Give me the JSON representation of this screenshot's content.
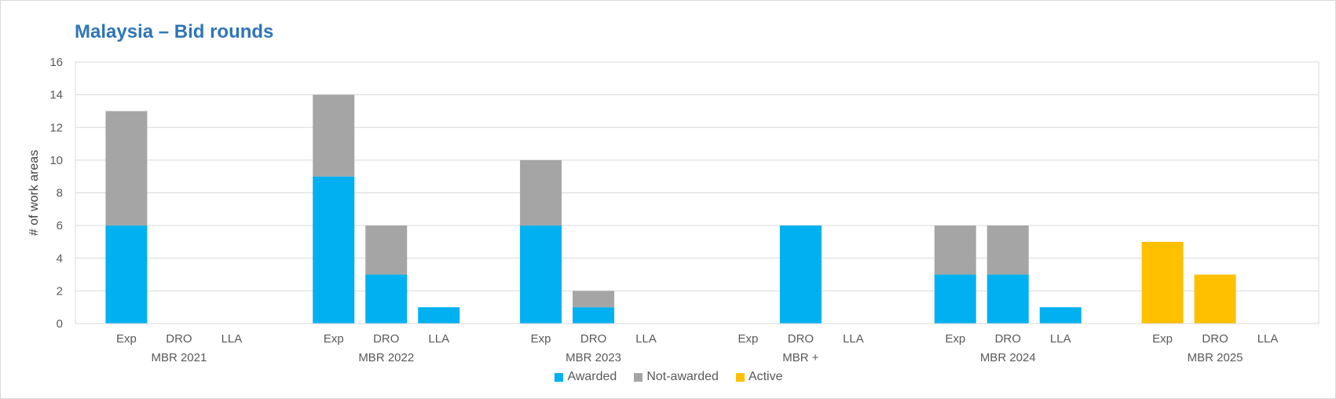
{
  "chart_data": {
    "type": "bar",
    "stacked": true,
    "title": "Malaysia – Bid rounds",
    "ylabel": "# of work areas",
    "ylim": [
      0,
      16
    ],
    "yticks": [
      0,
      2,
      4,
      6,
      8,
      10,
      12,
      14,
      16
    ],
    "grid": true,
    "legend_position": "bottom",
    "groups": [
      {
        "label": "MBR 2021",
        "categories": [
          "Exp",
          "DRO",
          "LLA"
        ]
      },
      {
        "label": "MBR 2022",
        "categories": [
          "Exp",
          "DRO",
          "LLA"
        ]
      },
      {
        "label": "MBR 2023",
        "categories": [
          "Exp",
          "DRO",
          "LLA"
        ]
      },
      {
        "label": "MBR +",
        "categories": [
          "Exp",
          "DRO",
          "LLA"
        ]
      },
      {
        "label": "MBR 2024",
        "categories": [
          "Exp",
          "DRO",
          "LLA"
        ]
      },
      {
        "label": "MBR 2025",
        "categories": [
          "Exp",
          "DRO",
          "LLA"
        ]
      }
    ],
    "series": [
      {
        "name": "Awarded",
        "color": "#00b0f0",
        "values": [
          [
            6,
            0,
            0
          ],
          [
            9,
            3,
            1
          ],
          [
            6,
            1,
            0
          ],
          [
            0,
            6,
            0
          ],
          [
            3,
            3,
            1
          ],
          [
            0,
            0,
            0
          ]
        ]
      },
      {
        "name": "Not-awarded",
        "color": "#a5a5a5",
        "values": [
          [
            7,
            0,
            0
          ],
          [
            5,
            3,
            0
          ],
          [
            4,
            1,
            0
          ],
          [
            0,
            0,
            0
          ],
          [
            3,
            3,
            0
          ],
          [
            0,
            0,
            0
          ]
        ]
      },
      {
        "name": "Active",
        "color": "#ffc000",
        "values": [
          [
            0,
            0,
            0
          ],
          [
            0,
            0,
            0
          ],
          [
            0,
            0,
            0
          ],
          [
            0,
            0,
            0
          ],
          [
            0,
            0,
            0
          ],
          [
            5,
            3,
            0
          ]
        ]
      }
    ]
  }
}
